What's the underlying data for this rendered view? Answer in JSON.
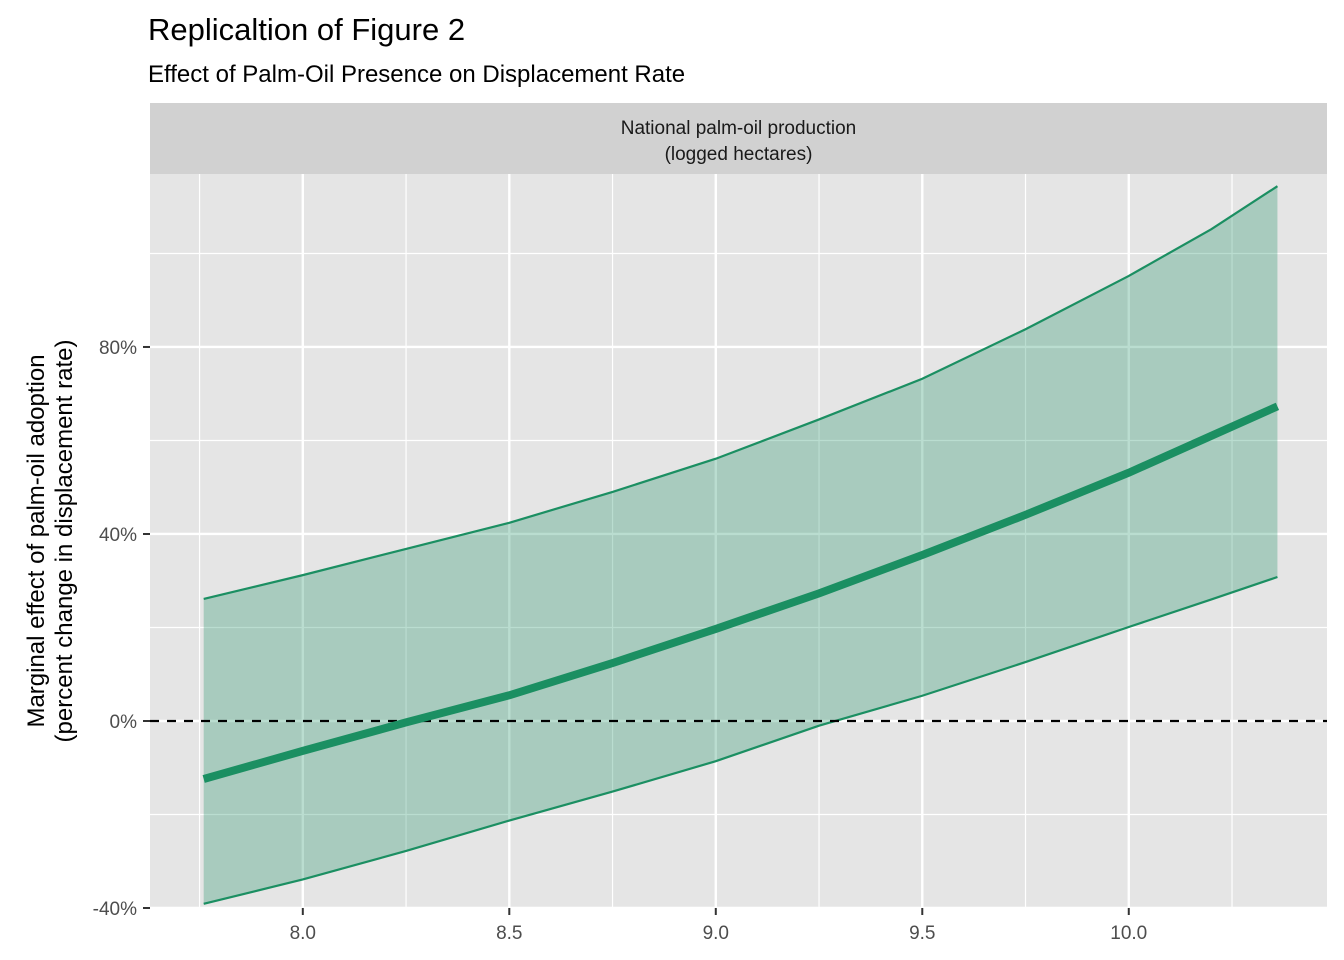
{
  "chart_data": {
    "type": "line",
    "title": "Replicaltion of Figure 2",
    "subtitle": "Effect of Palm-Oil Presence on Displacement Rate",
    "facet_label": [
      "National palm-oil production",
      "(logged hectares)"
    ],
    "xlabel": "",
    "ylabel": [
      "Marginal effect of palm-oil adoption",
      "(percent change in displacement rate)"
    ],
    "xlim": [
      7.63,
      10.48
    ],
    "ylim": [
      -40,
      117
    ],
    "x_ticks": [
      8.0,
      8.5,
      9.0,
      9.5,
      10.0
    ],
    "x_tick_labels": [
      "8.0",
      "8.5",
      "9.0",
      "9.5",
      "10.0"
    ],
    "y_ticks": [
      -40,
      0,
      40,
      80
    ],
    "y_tick_labels": [
      "-40%",
      "0%",
      "40%",
      "80%"
    ],
    "grid": true,
    "reference_line": {
      "y": 0,
      "style": "dashed",
      "color": "#000000"
    },
    "x": [
      7.76,
      8.0,
      8.25,
      8.5,
      8.75,
      9.0,
      9.25,
      9.5,
      9.75,
      10.0,
      10.2,
      10.36
    ],
    "series": [
      {
        "role": "estimate",
        "values": [
          -12.4,
          -6.4,
          -0.3,
          5.5,
          12.4,
          19.7,
          27.3,
          35.5,
          44.1,
          53.1,
          61.0,
          67.3
        ]
      },
      {
        "role": "upper",
        "values": [
          26.1,
          31.2,
          36.8,
          42.4,
          49.0,
          56.1,
          64.5,
          73.2,
          83.8,
          95.2,
          105.2,
          114.4
        ]
      },
      {
        "role": "lower",
        "values": [
          -39.1,
          -33.9,
          -27.8,
          -21.3,
          -15.1,
          -8.6,
          -1.0,
          5.4,
          12.6,
          20.1,
          26.0,
          30.8
        ]
      }
    ],
    "colors": {
      "line": "#1b8f62",
      "ribbon": "#1b8f62",
      "panel": "#e5e5e5",
      "strip": "#d1d1d1",
      "grid": "#ffffff"
    }
  }
}
